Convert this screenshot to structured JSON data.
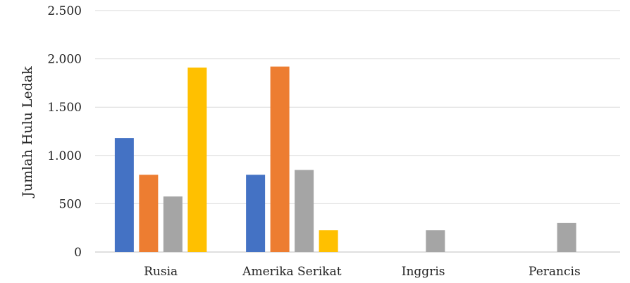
{
  "chart_data": {
    "type": "bar",
    "title": "",
    "xlabel": "",
    "ylabel": "Jumlah Hulu Ledak",
    "categories": [
      "Rusia",
      "Amerika Serikat",
      "Inggris",
      "Perancis"
    ],
    "series": [
      {
        "values": [
          1180,
          800,
          null,
          null
        ],
        "color": "#4472c4"
      },
      {
        "values": [
          800,
          1920,
          null,
          null
        ],
        "color": "#ed7d31"
      },
      {
        "values": [
          575,
          850,
          225,
          300
        ],
        "color": "#a5a5a5"
      },
      {
        "values": [
          1910,
          225,
          null,
          null
        ],
        "color": "#ffc000"
      }
    ],
    "ylim": [
      0,
      2500
    ],
    "yticks": [
      0,
      500,
      1000,
      1500,
      2000,
      2500
    ],
    "ytick_labels": [
      "0",
      "500",
      "1.000",
      "1.500",
      "2.000",
      "2.500"
    ],
    "grid": true,
    "legend": "none"
  }
}
